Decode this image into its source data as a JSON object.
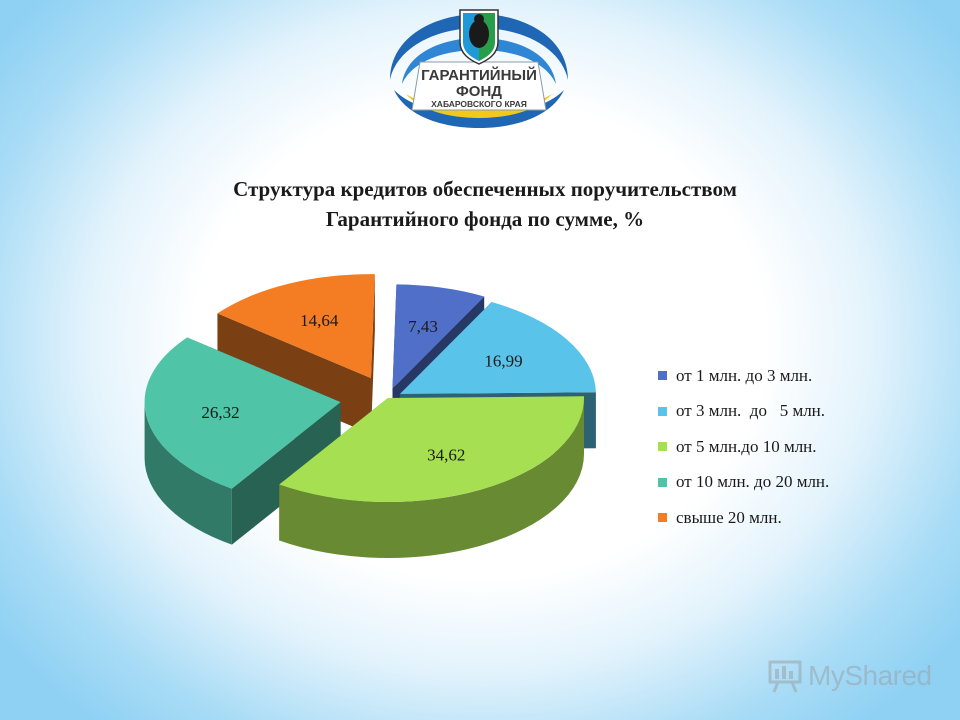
{
  "logo": {
    "lines": [
      "ГАРАНТИЙНЫЙ",
      "ФОНД",
      "ХАБАРОВСКОГО КРАЯ"
    ]
  },
  "watermark": {
    "text": "MyShared",
    "icon": "presentation-board-icon"
  },
  "colors": {
    "series": [
      "#4f6fc9",
      "#5ac3ea",
      "#a6df52",
      "#4fc4a6",
      "#f47d24"
    ]
  },
  "chart_data": {
    "type": "pie",
    "style": "3d-exploded",
    "title": [
      "Структура кредитов обеспеченных поручительством",
      "Гарантийного фонда по сумме, %"
    ],
    "categories": [
      "от 1 млн. до 3 млн.",
      "от 3 млн.  до   5 млн.",
      "от 5 млн.до 10 млн.",
      "от 10 млн. до 20 млн.",
      "свыше 20 млн."
    ],
    "values": [
      7.43,
      16.99,
      34.62,
      26.32,
      14.64
    ],
    "value_labels": [
      "7,43",
      "16,99",
      "34,62",
      "26,32",
      "14,64"
    ],
    "legend_position": "right"
  }
}
